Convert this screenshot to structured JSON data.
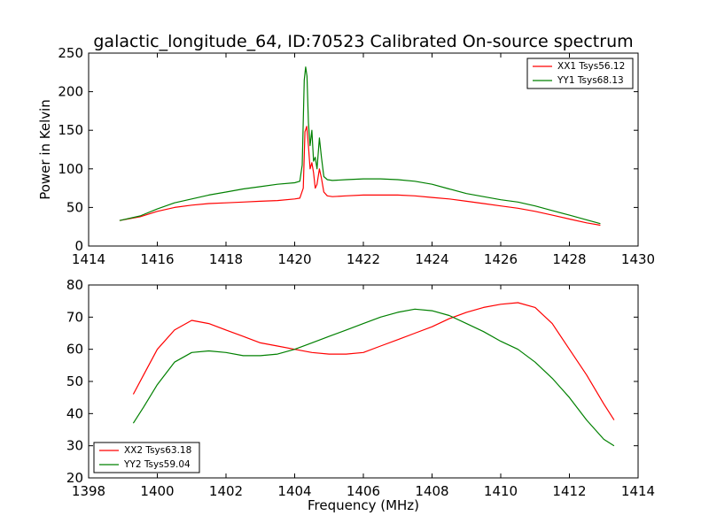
{
  "title": "galactic_longitude_64, ID:70523 Calibrated On-source spectrum",
  "colors": {
    "xx": "#ff0000",
    "yy": "#008000"
  },
  "chart_data": [
    {
      "type": "line",
      "xlabel": "",
      "ylabel": "Power in Kelvin",
      "xlim": [
        1414,
        1430
      ],
      "ylim": [
        0,
        250
      ],
      "xticks": [
        "1414",
        "1416",
        "1418",
        "1420",
        "1422",
        "1424",
        "1426",
        "1428",
        "1430"
      ],
      "yticks": [
        "0",
        "50",
        "100",
        "150",
        "200",
        "250"
      ],
      "grid": false,
      "legend_position": "top-right",
      "series": [
        {
          "name": "XX1 Tsys56.12",
          "color": "#ff0000",
          "x": [
            1414.9,
            1415.5,
            1416,
            1416.5,
            1417,
            1417.5,
            1418,
            1418.5,
            1419,
            1419.5,
            1420,
            1420.15,
            1420.25,
            1420.3,
            1420.35,
            1420.4,
            1420.45,
            1420.5,
            1420.55,
            1420.6,
            1420.65,
            1420.72,
            1420.78,
            1420.85,
            1420.95,
            1421.1,
            1421.5,
            1422,
            1422.5,
            1423,
            1423.5,
            1424,
            1424.5,
            1425,
            1425.5,
            1426,
            1426.5,
            1427,
            1427.5,
            1428,
            1428.5,
            1428.9
          ],
          "y": [
            33,
            38,
            45,
            50,
            53,
            55,
            56,
            57,
            58,
            59,
            61,
            62,
            75,
            148,
            155,
            130,
            100,
            108,
            95,
            75,
            80,
            100,
            88,
            70,
            65,
            64,
            65,
            66,
            66,
            66,
            65,
            63,
            61,
            58,
            55,
            52,
            49,
            45,
            40,
            35,
            30,
            27
          ]
        },
        {
          "name": "YY1 Tsys68.13",
          "color": "#008000",
          "x": [
            1414.9,
            1415.5,
            1416,
            1416.5,
            1417,
            1417.5,
            1418,
            1418.5,
            1419,
            1419.5,
            1420,
            1420.15,
            1420.22,
            1420.28,
            1420.32,
            1420.36,
            1420.4,
            1420.45,
            1420.5,
            1420.55,
            1420.6,
            1420.65,
            1420.72,
            1420.78,
            1420.85,
            1420.95,
            1421.1,
            1421.5,
            1422,
            1422.5,
            1423,
            1423.5,
            1424,
            1424.5,
            1425,
            1425.5,
            1426,
            1426.5,
            1427,
            1427.5,
            1428,
            1428.5,
            1428.9
          ],
          "y": [
            33,
            39,
            48,
            56,
            61,
            66,
            70,
            74,
            77,
            80,
            82,
            84,
            105,
            215,
            232,
            220,
            160,
            130,
            150,
            110,
            115,
            100,
            140,
            115,
            90,
            86,
            85,
            86,
            87,
            87,
            86,
            84,
            80,
            74,
            68,
            64,
            60,
            57,
            52,
            46,
            40,
            34,
            29
          ]
        }
      ]
    },
    {
      "type": "line",
      "xlabel": "Frequency (MHz)",
      "ylabel": "",
      "xlim": [
        1398,
        1414
      ],
      "ylim": [
        20,
        80
      ],
      "xticks": [
        "1398",
        "1400",
        "1402",
        "1404",
        "1406",
        "1408",
        "1410",
        "1412",
        "1414"
      ],
      "yticks": [
        "20",
        "30",
        "40",
        "50",
        "60",
        "70",
        "80"
      ],
      "grid": false,
      "legend_position": "bottom-left",
      "series": [
        {
          "name": "XX2 Tsys63.18",
          "color": "#ff0000",
          "x": [
            1399.3,
            1399.6,
            1400,
            1400.5,
            1401,
            1401.5,
            1402,
            1402.5,
            1403,
            1403.5,
            1404,
            1404.5,
            1405,
            1405.5,
            1406,
            1406.5,
            1407,
            1407.5,
            1408,
            1408.5,
            1409,
            1409.5,
            1410,
            1410.5,
            1411,
            1411.5,
            1412,
            1412.5,
            1413,
            1413.3
          ],
          "y": [
            46,
            52,
            60,
            66,
            69,
            68,
            66,
            64,
            62,
            61,
            60,
            59,
            58.5,
            58.5,
            59,
            61,
            63,
            65,
            67,
            69.5,
            71.5,
            73,
            74,
            74.5,
            73,
            68,
            60,
            52,
            43,
            38
          ]
        },
        {
          "name": "YY2 Tsys59.04",
          "color": "#008000",
          "x": [
            1399.3,
            1399.6,
            1400,
            1400.5,
            1401,
            1401.5,
            1402,
            1402.5,
            1403,
            1403.5,
            1404,
            1404.5,
            1405,
            1405.5,
            1406,
            1406.5,
            1407,
            1407.5,
            1408,
            1408.5,
            1409,
            1409.5,
            1410,
            1410.5,
            1411,
            1411.5,
            1412,
            1412.5,
            1413,
            1413.3
          ],
          "y": [
            37,
            42,
            49,
            56,
            59,
            59.5,
            59,
            58,
            58,
            58.5,
            60,
            62,
            64,
            66,
            68,
            70,
            71.5,
            72.5,
            72,
            70.5,
            68,
            65.5,
            62.5,
            60,
            56,
            51,
            45,
            38,
            32,
            30
          ]
        }
      ]
    }
  ]
}
